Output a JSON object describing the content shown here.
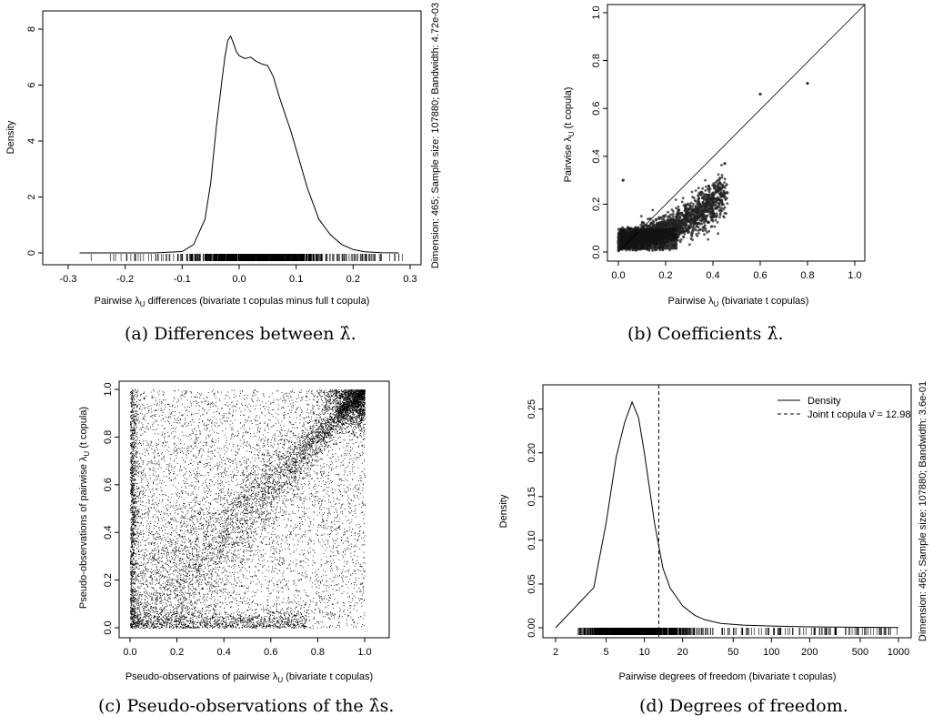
{
  "captions": {
    "a": "(a) Differences between λ̂.",
    "b": "(b) Coefficients λ̂.",
    "c": "(c) Pseudo-observations of the λ̂s.",
    "d": "(d) Degrees of freedom."
  },
  "chart_data": [
    {
      "id": "a",
      "type": "line",
      "xlabel": "Pairwise λ_U differences (bivariate t copulas minus full t copula)",
      "ylabel": "Density",
      "side_label": "Dimension: 465; Sample size: 107880; Bandwidth: 4.72e-03",
      "xlim": [
        -0.3,
        0.3
      ],
      "ylim": [
        0,
        8
      ],
      "x_ticks": [
        "-0.3",
        "-0.2",
        "-0.1",
        "0.0",
        "0.1",
        "0.2",
        "0.3"
      ],
      "y_ticks": [
        "0",
        "2",
        "4",
        "6",
        "8"
      ],
      "rug": true,
      "series": [
        {
          "x": [
            -0.28,
            -0.15,
            -0.1,
            -0.08,
            -0.06,
            -0.05,
            -0.04,
            -0.03,
            -0.025,
            -0.02,
            -0.015,
            -0.01,
            -0.005,
            0.0,
            0.01,
            0.02,
            0.03,
            0.04,
            0.05,
            0.06,
            0.07,
            0.08,
            0.09,
            0.1,
            0.12,
            0.14,
            0.16,
            0.18,
            0.2,
            0.22,
            0.25,
            0.28
          ],
          "y": [
            0,
            0,
            0.05,
            0.3,
            1.2,
            2.5,
            4.5,
            6.2,
            7.0,
            7.6,
            7.75,
            7.5,
            7.2,
            7.05,
            6.95,
            7.0,
            6.85,
            6.75,
            6.7,
            6.3,
            5.6,
            5.0,
            4.4,
            3.7,
            2.3,
            1.2,
            0.65,
            0.3,
            0.12,
            0.04,
            0.01,
            0
          ]
        }
      ]
    },
    {
      "id": "b",
      "type": "scatter",
      "xlabel": "Pairwise λ_U (bivariate t copulas)",
      "ylabel": "Pairwise λ_U (t copula)",
      "xlim": [
        0,
        1
      ],
      "ylim": [
        0,
        1
      ],
      "x_ticks": [
        "0.0",
        "0.2",
        "0.4",
        "0.6",
        "0.8",
        "1.0"
      ],
      "y_ticks": [
        "0.0",
        "0.2",
        "0.4",
        "0.6",
        "0.8",
        "1.0"
      ],
      "reference_line": "y = x",
      "highlight_points": [
        {
          "x": 0.6,
          "y": 0.66
        },
        {
          "x": 0.8,
          "y": 0.705
        },
        {
          "x": 0.45,
          "y": 0.37
        },
        {
          "x": 0.02,
          "y": 0.3
        }
      ],
      "n_points": 107880
    },
    {
      "id": "c",
      "type": "scatter",
      "xlabel": "Pseudo-observations of pairwise λ_U (bivariate t copulas)",
      "ylabel": "Pseudo-observations of pairwise λ_U (t copula)",
      "xlim": [
        0,
        1
      ],
      "ylim": [
        0,
        1
      ],
      "x_ticks": [
        "0.0",
        "0.2",
        "0.4",
        "0.6",
        "0.8",
        "1.0"
      ],
      "y_ticks": [
        "0.0",
        "0.2",
        "0.4",
        "0.6",
        "0.8",
        "1.0"
      ],
      "n_points": 107880
    },
    {
      "id": "d",
      "type": "line",
      "xlabel": "Pairwise degrees of freedom (bivariate t copulas)",
      "ylabel": "Density",
      "side_label": "Dimension: 465; Sample size: 107880; Bandwidth: 3.6e-01",
      "x_scale": "log",
      "xlim": [
        2,
        1000
      ],
      "ylim": [
        0,
        0.26
      ],
      "x_ticks": [
        "2",
        "5",
        "10",
        "20",
        "50",
        "100",
        "200",
        "500",
        "1000"
      ],
      "x_tick_values": [
        2,
        5,
        10,
        20,
        50,
        100,
        200,
        500,
        1000
      ],
      "y_ticks": [
        "0.00",
        "0.05",
        "0.10",
        "0.15",
        "0.20",
        "0.25"
      ],
      "rug": true,
      "legend": {
        "position": "top-right",
        "entries": [
          "Density",
          "Joint t copula ν̂ = 12.98"
        ]
      },
      "vline": 12.98,
      "series": [
        {
          "name": "Density",
          "x": [
            2,
            4,
            5,
            6,
            7,
            8,
            9,
            10,
            12,
            14,
            16,
            20,
            25,
            30,
            40,
            60,
            100,
            200,
            500,
            1000
          ],
          "y": [
            0.0,
            0.046,
            0.12,
            0.195,
            0.235,
            0.258,
            0.24,
            0.2,
            0.12,
            0.068,
            0.045,
            0.025,
            0.014,
            0.009,
            0.005,
            0.003,
            0.002,
            0.001,
            0.0005,
            0.0002
          ]
        }
      ]
    }
  ]
}
